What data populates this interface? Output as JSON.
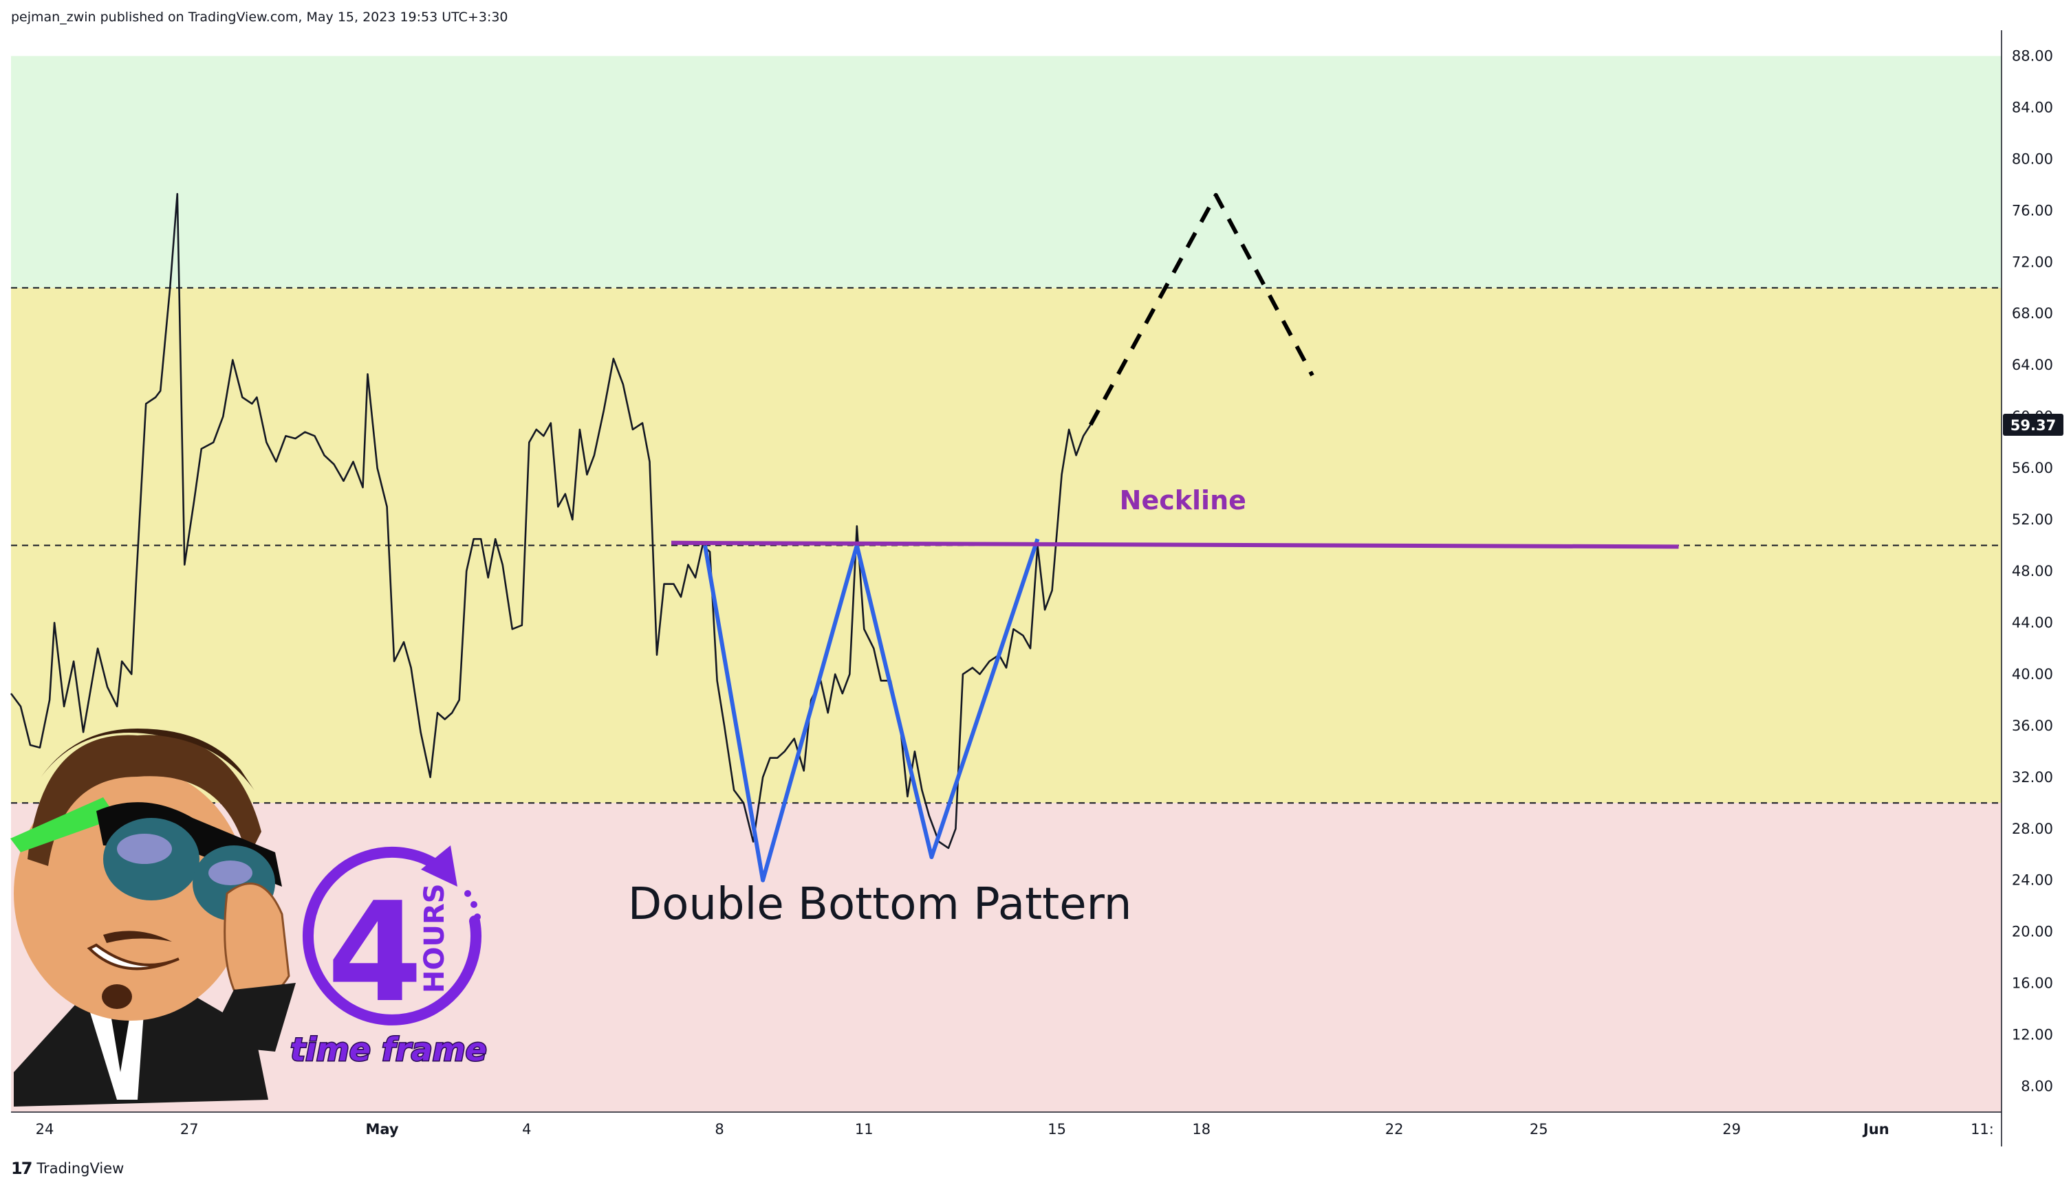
{
  "header": {
    "published": "pejman_zwin published on TradingView.com, May 15, 2023 19:53 UTC+3:30"
  },
  "footer": {
    "brand": "TradingView",
    "logo": "tradingview-logo"
  },
  "chart_data": {
    "type": "line",
    "ylim": [
      6,
      90
    ],
    "yticks": [
      8,
      12,
      16,
      20,
      24,
      28,
      32,
      36,
      40,
      44,
      48,
      52,
      56,
      60,
      64,
      68,
      72,
      76,
      80,
      84,
      88
    ],
    "x_ticks": [
      {
        "label": "24",
        "x": 0.7
      },
      {
        "label": "27",
        "x": 3.7
      },
      {
        "label": "May",
        "x": 7.7
      },
      {
        "label": "4",
        "x": 10.7
      },
      {
        "label": "8",
        "x": 14.7
      },
      {
        "label": "11",
        "x": 17.7
      },
      {
        "label": "15",
        "x": 21.7
      },
      {
        "label": "18",
        "x": 24.7
      },
      {
        "label": "22",
        "x": 28.7
      },
      {
        "label": "25",
        "x": 31.7
      },
      {
        "label": "29",
        "x": 35.7
      },
      {
        "label": "Jun",
        "x": 38.7
      },
      {
        "label": "11:",
        "x": 40.9
      }
    ],
    "xlim": [
      0,
      41.3
    ],
    "last_value": "59.37",
    "zones": [
      {
        "name": "overbought",
        "from": 70,
        "to": 88,
        "color": "#e0f8e0"
      },
      {
        "name": "neutral",
        "from": 30,
        "to": 70,
        "color": "#f3eeac"
      },
      {
        "name": "oversold",
        "from": 6,
        "to": 30,
        "color": "#f7dede"
      }
    ],
    "levels": [
      70,
      50,
      30
    ],
    "series": [
      {
        "color": "#131722",
        "points": [
          [
            0.0,
            38.5
          ],
          [
            0.2,
            37.5
          ],
          [
            0.4,
            34.5
          ],
          [
            0.6,
            34.3
          ],
          [
            0.8,
            38.0
          ],
          [
            0.9,
            44.0
          ],
          [
            1.1,
            37.5
          ],
          [
            1.3,
            41.0
          ],
          [
            1.5,
            35.5
          ],
          [
            1.8,
            42.0
          ],
          [
            2.0,
            39.0
          ],
          [
            2.2,
            37.5
          ],
          [
            2.3,
            41.0
          ],
          [
            2.5,
            40.0
          ],
          [
            2.6,
            47.5
          ],
          [
            2.8,
            61.0
          ],
          [
            3.0,
            61.5
          ],
          [
            3.1,
            62.0
          ],
          [
            3.3,
            70.0
          ],
          [
            3.45,
            77.3
          ],
          [
            3.6,
            48.5
          ],
          [
            3.8,
            53.5
          ],
          [
            3.95,
            57.5
          ],
          [
            4.2,
            58.0
          ],
          [
            4.4,
            60.0
          ],
          [
            4.6,
            64.4
          ],
          [
            4.8,
            61.5
          ],
          [
            5.0,
            61.0
          ],
          [
            5.1,
            61.5
          ],
          [
            5.3,
            58.0
          ],
          [
            5.5,
            56.5
          ],
          [
            5.7,
            58.5
          ],
          [
            5.9,
            58.3
          ],
          [
            6.1,
            58.8
          ],
          [
            6.3,
            58.5
          ],
          [
            6.5,
            57.0
          ],
          [
            6.7,
            56.3
          ],
          [
            6.9,
            55.0
          ],
          [
            7.1,
            56.5
          ],
          [
            7.3,
            54.5
          ],
          [
            7.4,
            63.3
          ],
          [
            7.6,
            56.0
          ],
          [
            7.8,
            53.0
          ],
          [
            7.95,
            41.0
          ],
          [
            8.15,
            42.5
          ],
          [
            8.3,
            40.5
          ],
          [
            8.5,
            35.5
          ],
          [
            8.7,
            32.0
          ],
          [
            8.85,
            37.0
          ],
          [
            9.0,
            36.5
          ],
          [
            9.15,
            37.0
          ],
          [
            9.3,
            38.0
          ],
          [
            9.45,
            48.0
          ],
          [
            9.6,
            50.5
          ],
          [
            9.75,
            50.5
          ],
          [
            9.9,
            47.5
          ],
          [
            10.05,
            50.5
          ],
          [
            10.2,
            48.5
          ],
          [
            10.4,
            43.5
          ],
          [
            10.6,
            43.8
          ],
          [
            10.75,
            58.0
          ],
          [
            10.9,
            59.0
          ],
          [
            11.05,
            58.5
          ],
          [
            11.2,
            59.5
          ],
          [
            11.35,
            53.0
          ],
          [
            11.5,
            54.0
          ],
          [
            11.65,
            52.0
          ],
          [
            11.8,
            59.0
          ],
          [
            11.95,
            55.5
          ],
          [
            12.1,
            57.0
          ],
          [
            12.3,
            60.5
          ],
          [
            12.5,
            64.5
          ],
          [
            12.7,
            62.5
          ],
          [
            12.9,
            59.0
          ],
          [
            13.1,
            59.5
          ],
          [
            13.25,
            56.5
          ],
          [
            13.4,
            41.5
          ],
          [
            13.55,
            47.0
          ],
          [
            13.75,
            47.0
          ],
          [
            13.9,
            46.0
          ],
          [
            14.05,
            48.5
          ],
          [
            14.2,
            47.5
          ],
          [
            14.35,
            50.0
          ],
          [
            14.5,
            49.5
          ],
          [
            14.65,
            39.5
          ],
          [
            14.8,
            36.0
          ],
          [
            15.0,
            31.0
          ],
          [
            15.2,
            30.0
          ],
          [
            15.4,
            27.0
          ],
          [
            15.6,
            32.0
          ],
          [
            15.75,
            33.5
          ],
          [
            15.9,
            33.5
          ],
          [
            16.05,
            34.0
          ],
          [
            16.25,
            35.0
          ],
          [
            16.45,
            32.5
          ],
          [
            16.6,
            38.0
          ],
          [
            16.8,
            39.5
          ],
          [
            16.95,
            37.0
          ],
          [
            17.1,
            40.0
          ],
          [
            17.25,
            38.5
          ],
          [
            17.4,
            40.0
          ],
          [
            17.55,
            51.5
          ],
          [
            17.7,
            43.5
          ],
          [
            17.9,
            42.0
          ],
          [
            18.05,
            39.5
          ],
          [
            18.25,
            39.5
          ],
          [
            18.45,
            36.0
          ],
          [
            18.6,
            30.5
          ],
          [
            18.75,
            34.0
          ],
          [
            18.9,
            31.0
          ],
          [
            19.05,
            29.0
          ],
          [
            19.25,
            27.0
          ],
          [
            19.45,
            26.5
          ],
          [
            19.6,
            28.0
          ],
          [
            19.75,
            40.0
          ],
          [
            19.95,
            40.5
          ],
          [
            20.1,
            40.0
          ],
          [
            20.3,
            41.0
          ],
          [
            20.5,
            41.5
          ],
          [
            20.65,
            40.5
          ],
          [
            20.8,
            43.5
          ],
          [
            21.0,
            43.0
          ],
          [
            21.15,
            42.0
          ],
          [
            21.3,
            50.0
          ],
          [
            21.45,
            45.0
          ],
          [
            21.6,
            46.5
          ],
          [
            21.8,
            55.5
          ],
          [
            21.95,
            59.0
          ],
          [
            22.1,
            57.0
          ],
          [
            22.25,
            58.5
          ],
          [
            22.4,
            59.37
          ]
        ]
      },
      {
        "color": "#2f63e6",
        "points": [
          [
            14.4,
            50.0
          ],
          [
            15.6,
            24.0
          ],
          [
            17.55,
            50.0
          ],
          [
            19.1,
            25.8
          ],
          [
            21.3,
            50.5
          ]
        ]
      },
      {
        "color": "#8f2fb0",
        "points": [
          [
            13.7,
            50.2
          ],
          [
            34.6,
            49.9
          ]
        ]
      },
      {
        "color": "#000000",
        "dashed": true,
        "points": [
          [
            22.4,
            59.37
          ],
          [
            25.0,
            77.2
          ],
          [
            27.0,
            63.2
          ]
        ]
      }
    ],
    "annotations": [
      {
        "text": "Neckline",
        "x": 23.0,
        "y": 52.8,
        "color": "#8f2fb0"
      },
      {
        "text": "Double Bottom Pattern",
        "x": 12.8,
        "y": 21.0,
        "color": "#131722"
      }
    ]
  },
  "badge": {
    "number": "4",
    "hours": "HOURS",
    "caption": "time frame",
    "accent": "#7b25e0"
  }
}
